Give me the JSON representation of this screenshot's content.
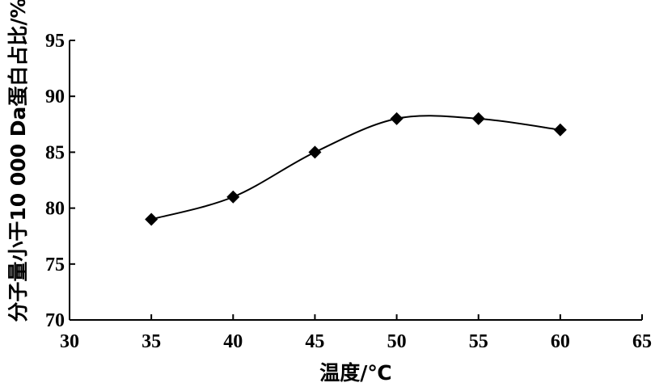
{
  "chart_data": {
    "type": "line",
    "x": [
      35,
      40,
      45,
      50,
      55,
      60
    ],
    "series": [
      {
        "values": [
          79,
          81,
          85,
          88,
          88,
          87
        ]
      }
    ],
    "xlabel": "温度/℃",
    "ylabel": "分子量小于10 000 Da蛋白占比/%",
    "xlim": [
      30,
      65
    ],
    "ylim": [
      70,
      95
    ],
    "xticks": [
      30,
      35,
      40,
      45,
      50,
      55,
      60,
      65
    ],
    "yticks": [
      70,
      75,
      80,
      85,
      90,
      95
    ],
    "smooth": true,
    "marker": "diamond",
    "grid": false,
    "legend": "none"
  }
}
